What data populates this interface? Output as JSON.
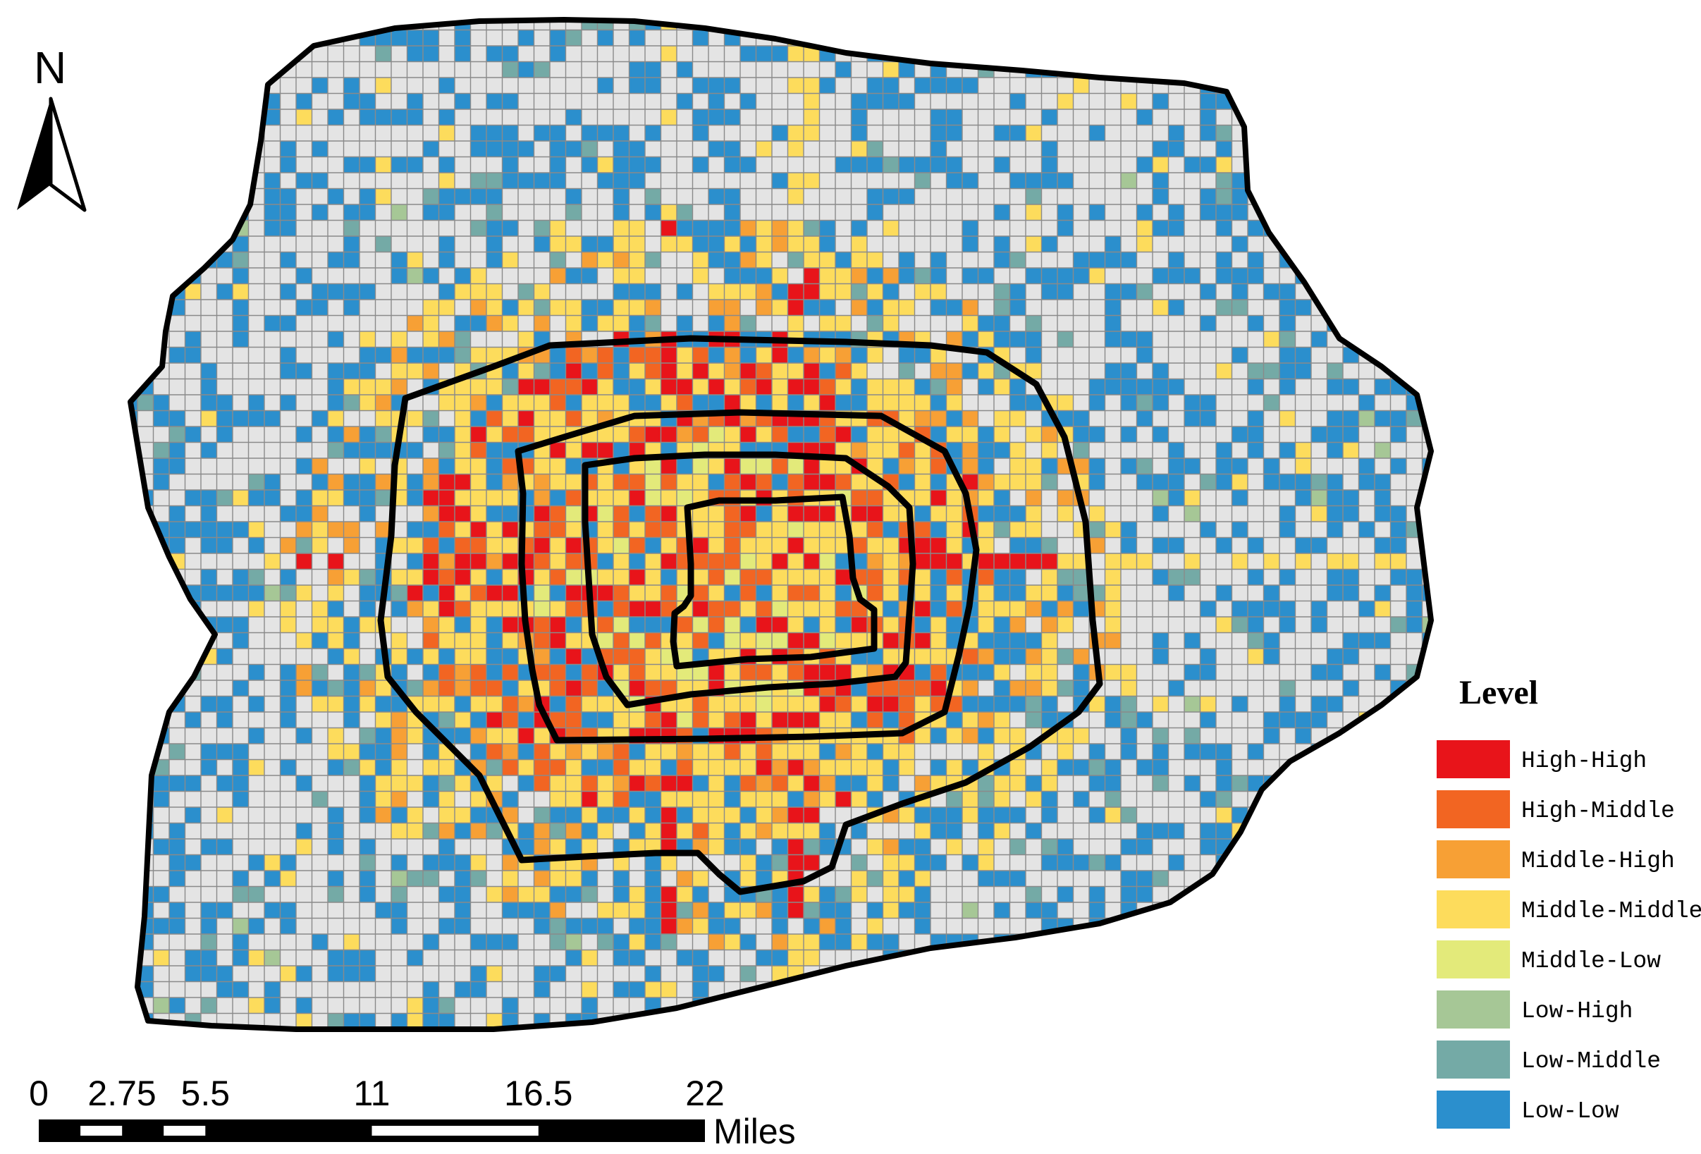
{
  "north_arrow": {
    "label": "N"
  },
  "scale_bar": {
    "ticks": [
      "0",
      "2.75",
      "5.5",
      "11",
      "16.5",
      "22"
    ],
    "tick_values": [
      0,
      2.75,
      5.5,
      11,
      16.5,
      22
    ],
    "unit": "Miles"
  },
  "legend": {
    "title": "Level",
    "placement": "bottom-right",
    "items": [
      {
        "label": "High-High",
        "color": "#e8141a"
      },
      {
        "label": "High-Middle",
        "color": "#f26522"
      },
      {
        "label": "Middle-High",
        "color": "#f7a035"
      },
      {
        "label": "Middle-Middle",
        "color": "#fddc5c"
      },
      {
        "label": "Middle-Low",
        "color": "#e3ea7a"
      },
      {
        "label": "Low-High",
        "color": "#a6c796"
      },
      {
        "label": "Low-Middle",
        "color": "#74aaa6"
      },
      {
        "label": "Low-Low",
        "color": "#2b8fcd"
      }
    ]
  },
  "map": {
    "background_cell_color": "#e4e4e4",
    "grid_line_color": "#8a8a8a",
    "boundary_color": "#000000",
    "ring_road_count": 4
  }
}
